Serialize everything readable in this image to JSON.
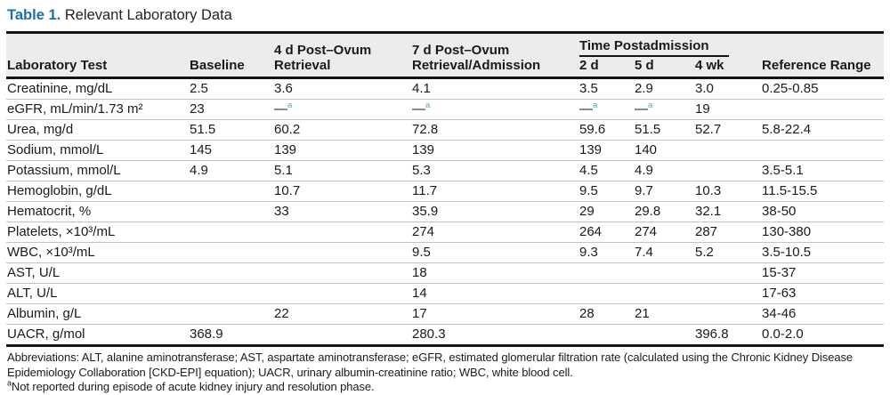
{
  "title": {
    "label": "Table 1.",
    "text": "Relevant Laboratory Data"
  },
  "colors": {
    "accent_blue": "#1e6fa9",
    "footnote_marker_teal": "#58a2ae"
  },
  "table": {
    "headers": {
      "lab_test": "Laboratory Test",
      "baseline": "Baseline",
      "post4d": "4 d Post–Ovum Retrieval",
      "post7d": "7 d Post–Ovum Retrieval/Admission",
      "time_postadmission": "Time Postadmission",
      "d2": "2 d",
      "d5": "5 d",
      "wk4": "4 wk",
      "reference": "Reference Range"
    },
    "rows": [
      {
        "test": "Creatinine, mg/dL",
        "baseline": "2.5",
        "post4d": "3.6",
        "post7d": "4.1",
        "d2": "3.5",
        "d5": "2.9",
        "wk4": "3.0",
        "ref": "0.25-0.85"
      },
      {
        "test": "eGFR, mL/min/1.73 m²",
        "baseline": "23",
        "post4d": "—ᵃ",
        "post7d": "—ᵃ",
        "d2": "—ᵃ",
        "d5": "—ᵃ",
        "wk4": "19",
        "ref": ""
      },
      {
        "test": "Urea, mg/d",
        "baseline": "51.5",
        "post4d": "60.2",
        "post7d": "72.8",
        "d2": "59.6",
        "d5": "51.5",
        "wk4": "52.7",
        "ref": "5.8-22.4"
      },
      {
        "test": "Sodium, mmol/L",
        "baseline": "145",
        "post4d": "139",
        "post7d": "139",
        "d2": "139",
        "d5": "140",
        "wk4": "",
        "ref": ""
      },
      {
        "test": "Potassium, mmol/L",
        "baseline": "4.9",
        "post4d": "5.1",
        "post7d": "5.3",
        "d2": "4.5",
        "d5": "4.9",
        "wk4": "",
        "ref": "3.5-5.1"
      },
      {
        "test": "Hemoglobin, g/dL",
        "baseline": "",
        "post4d": "10.7",
        "post7d": "11.7",
        "d2": "9.5",
        "d5": "9.7",
        "wk4": "10.3",
        "ref": "11.5-15.5"
      },
      {
        "test": "Hematocrit, %",
        "baseline": "",
        "post4d": "33",
        "post7d": "35.9",
        "d2": "29",
        "d5": "29.8",
        "wk4": "32.1",
        "ref": "38-50"
      },
      {
        "test": "Platelets, ×10³/mL",
        "baseline": "",
        "post4d": "",
        "post7d": "274",
        "d2": "264",
        "d5": "274",
        "wk4": "287",
        "ref": "130-380"
      },
      {
        "test": "WBC, ×10³/mL",
        "baseline": "",
        "post4d": "",
        "post7d": "9.5",
        "d2": "9.3",
        "d5": "7.4",
        "wk4": "5.2",
        "ref": "3.5-10.5"
      },
      {
        "test": "AST, U/L",
        "baseline": "",
        "post4d": "",
        "post7d": "18",
        "d2": "",
        "d5": "",
        "wk4": "",
        "ref": "15-37"
      },
      {
        "test": "ALT, U/L",
        "baseline": "",
        "post4d": "",
        "post7d": "14",
        "d2": "",
        "d5": "",
        "wk4": "",
        "ref": "17-63"
      },
      {
        "test": "Albumin, g/L",
        "baseline": "",
        "post4d": "22",
        "post7d": "17",
        "d2": "28",
        "d5": "21",
        "wk4": "",
        "ref": "34-46"
      },
      {
        "test": "UACR, g/mol",
        "baseline": "368.9",
        "post4d": "",
        "post7d": "280.3",
        "d2": "",
        "d5": "",
        "wk4": "396.8",
        "ref": "0.0-2.0"
      }
    ]
  },
  "footnotes": {
    "abbreviations": "Abbreviations: ALT, alanine aminotransferase; AST, aspartate aminotransferase; eGFR, estimated glomerular filtration rate (calculated using the Chronic Kidney Disease Epidemiology Collaboration [CKD-EPI] equation); UACR, urinary albumin-creatinine ratio; WBC, white blood cell.",
    "note_a": "ᵃNot reported during episode of acute kidney injury and resolution phase."
  }
}
